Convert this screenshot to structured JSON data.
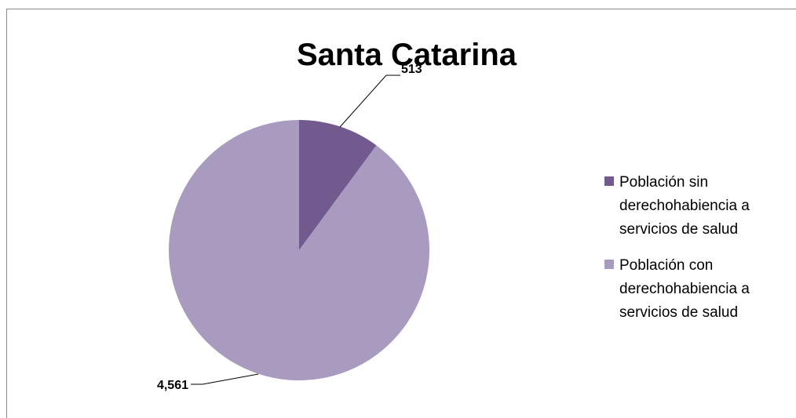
{
  "chart_data": {
    "type": "pie",
    "title": "Santa Catarina",
    "categories": [
      "Población sin derechohabiencia a servicios de salud",
      "Población con derechohabiencia a servicios de salud"
    ],
    "values": [
      513,
      4561
    ],
    "value_labels": [
      "513",
      "4,561"
    ],
    "colors": [
      "#725a8f",
      "#a99bc0"
    ],
    "legend": {
      "position": "right",
      "entries": [
        [
          "Población sin",
          "derechohabiencia a",
          "servicios de salud"
        ],
        [
          "Población con",
          "derechohabiencia a",
          "servicios de salud"
        ]
      ]
    }
  }
}
